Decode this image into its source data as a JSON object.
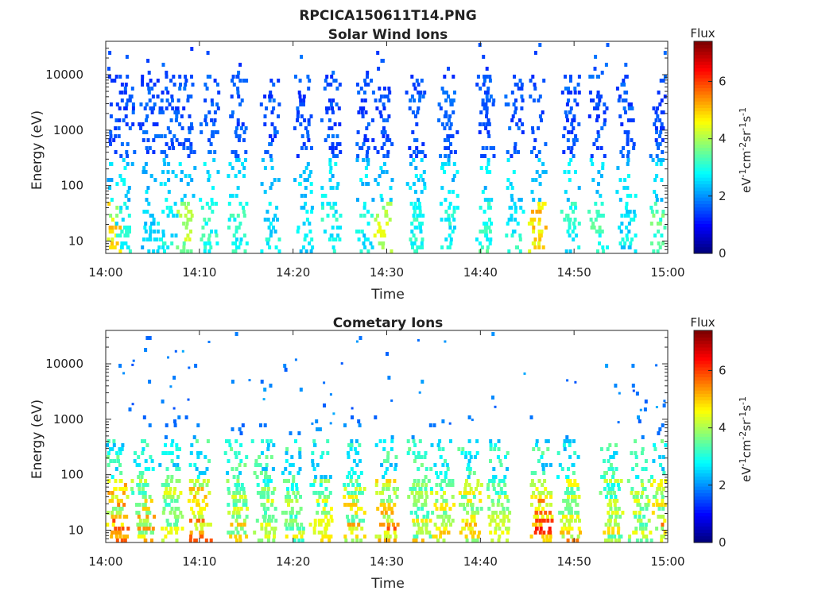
{
  "figure": {
    "title": "RPCICA150611T14.PNG"
  },
  "chart_data": [
    {
      "type": "heatmap",
      "title": "Solar Wind Ions",
      "xlabel": "Time",
      "ylabel": "Energy (eV)",
      "x_tick_labels": [
        "14:00",
        "14:10",
        "14:20",
        "14:30",
        "14:40",
        "14:50",
        "15:00"
      ],
      "x_range": [
        "14:00",
        "15:00"
      ],
      "y_scale": "log",
      "y_tick_labels": [
        "10",
        "100",
        "1000",
        "10000"
      ],
      "y_range": [
        6,
        40000
      ],
      "colorbar": {
        "title": "Flux",
        "label": "eV-1cm-2sr-1s-1",
        "range": [
          0,
          7.4
        ],
        "tick_labels": [
          "0",
          "2",
          "4",
          "6"
        ],
        "colormap": "jet"
      },
      "sweeps": [
        {
          "t": "14:00.5",
          "flux": 5.0
        },
        {
          "t": "14:02.0",
          "flux": 3.2
        },
        {
          "t": "14:04.5",
          "flux": 2.6
        },
        {
          "t": "14:06.5",
          "flux": 3.0
        },
        {
          "t": "14:08.5",
          "flux": 4.2
        },
        {
          "t": "14:11.0",
          "flux": 3.4
        },
        {
          "t": "14:14.0",
          "flux": 3.2
        },
        {
          "t": "14:17.5",
          "flux": 3.0
        },
        {
          "t": "14:21.0",
          "flux": 3.0
        },
        {
          "t": "14:24.0",
          "flux": 3.2
        },
        {
          "t": "14:27.5",
          "flux": 3.0
        },
        {
          "t": "14:29.5",
          "flux": 4.6
        },
        {
          "t": "14:33.0",
          "flux": 3.2
        },
        {
          "t": "14:36.5",
          "flux": 3.2
        },
        {
          "t": "14:40.5",
          "flux": 3.4
        },
        {
          "t": "14:43.5",
          "flux": 3.2
        },
        {
          "t": "14:46.0",
          "flux": 5.6
        },
        {
          "t": "14:49.5",
          "flux": 3.2
        },
        {
          "t": "14:52.5",
          "flux": 3.4
        },
        {
          "t": "14:55.5",
          "flux": 3.0
        },
        {
          "t": "14:59.0",
          "flux": 3.6
        }
      ]
    },
    {
      "type": "heatmap",
      "title": "Cometary Ions",
      "xlabel": "Time",
      "ylabel": "Energy (eV)",
      "x_tick_labels": [
        "14:00",
        "14:10",
        "14:20",
        "14:30",
        "14:40",
        "14:50",
        "15:00"
      ],
      "x_range": [
        "14:00",
        "15:00"
      ],
      "y_scale": "log",
      "y_tick_labels": [
        "10",
        "100",
        "1000",
        "10000"
      ],
      "y_range": [
        6,
        40000
      ],
      "colorbar": {
        "title": "Flux",
        "label": "eV-1cm-2sr-1s-1",
        "range": [
          0,
          7.4
        ],
        "tick_labels": [
          "0",
          "2",
          "4",
          "6"
        ],
        "colormap": "jet"
      },
      "sweeps": [
        {
          "t": "14:00.7",
          "flux": 6.2
        },
        {
          "t": "14:03.5",
          "flux": 5.6
        },
        {
          "t": "14:06.5",
          "flux": 5.2
        },
        {
          "t": "14:09.5",
          "flux": 6.0
        },
        {
          "t": "14:13.5",
          "flux": 5.4
        },
        {
          "t": "14:16.5",
          "flux": 5.0
        },
        {
          "t": "14:19.5",
          "flux": 4.8
        },
        {
          "t": "14:22.5",
          "flux": 5.0
        },
        {
          "t": "14:26.0",
          "flux": 5.4
        },
        {
          "t": "14:29.5",
          "flux": 6.0
        },
        {
          "t": "14:33.0",
          "flux": 5.0
        },
        {
          "t": "14:35.5",
          "flux": 5.2
        },
        {
          "t": "14:38.5",
          "flux": 5.4
        },
        {
          "t": "14:41.5",
          "flux": 4.8
        },
        {
          "t": "14:46.0",
          "flux": 6.8
        },
        {
          "t": "14:49.0",
          "flux": 5.6
        },
        {
          "t": "14:53.5",
          "flux": 5.0
        },
        {
          "t": "14:56.5",
          "flux": 5.2
        },
        {
          "t": "14:59.0",
          "flux": 5.8
        }
      ]
    }
  ]
}
